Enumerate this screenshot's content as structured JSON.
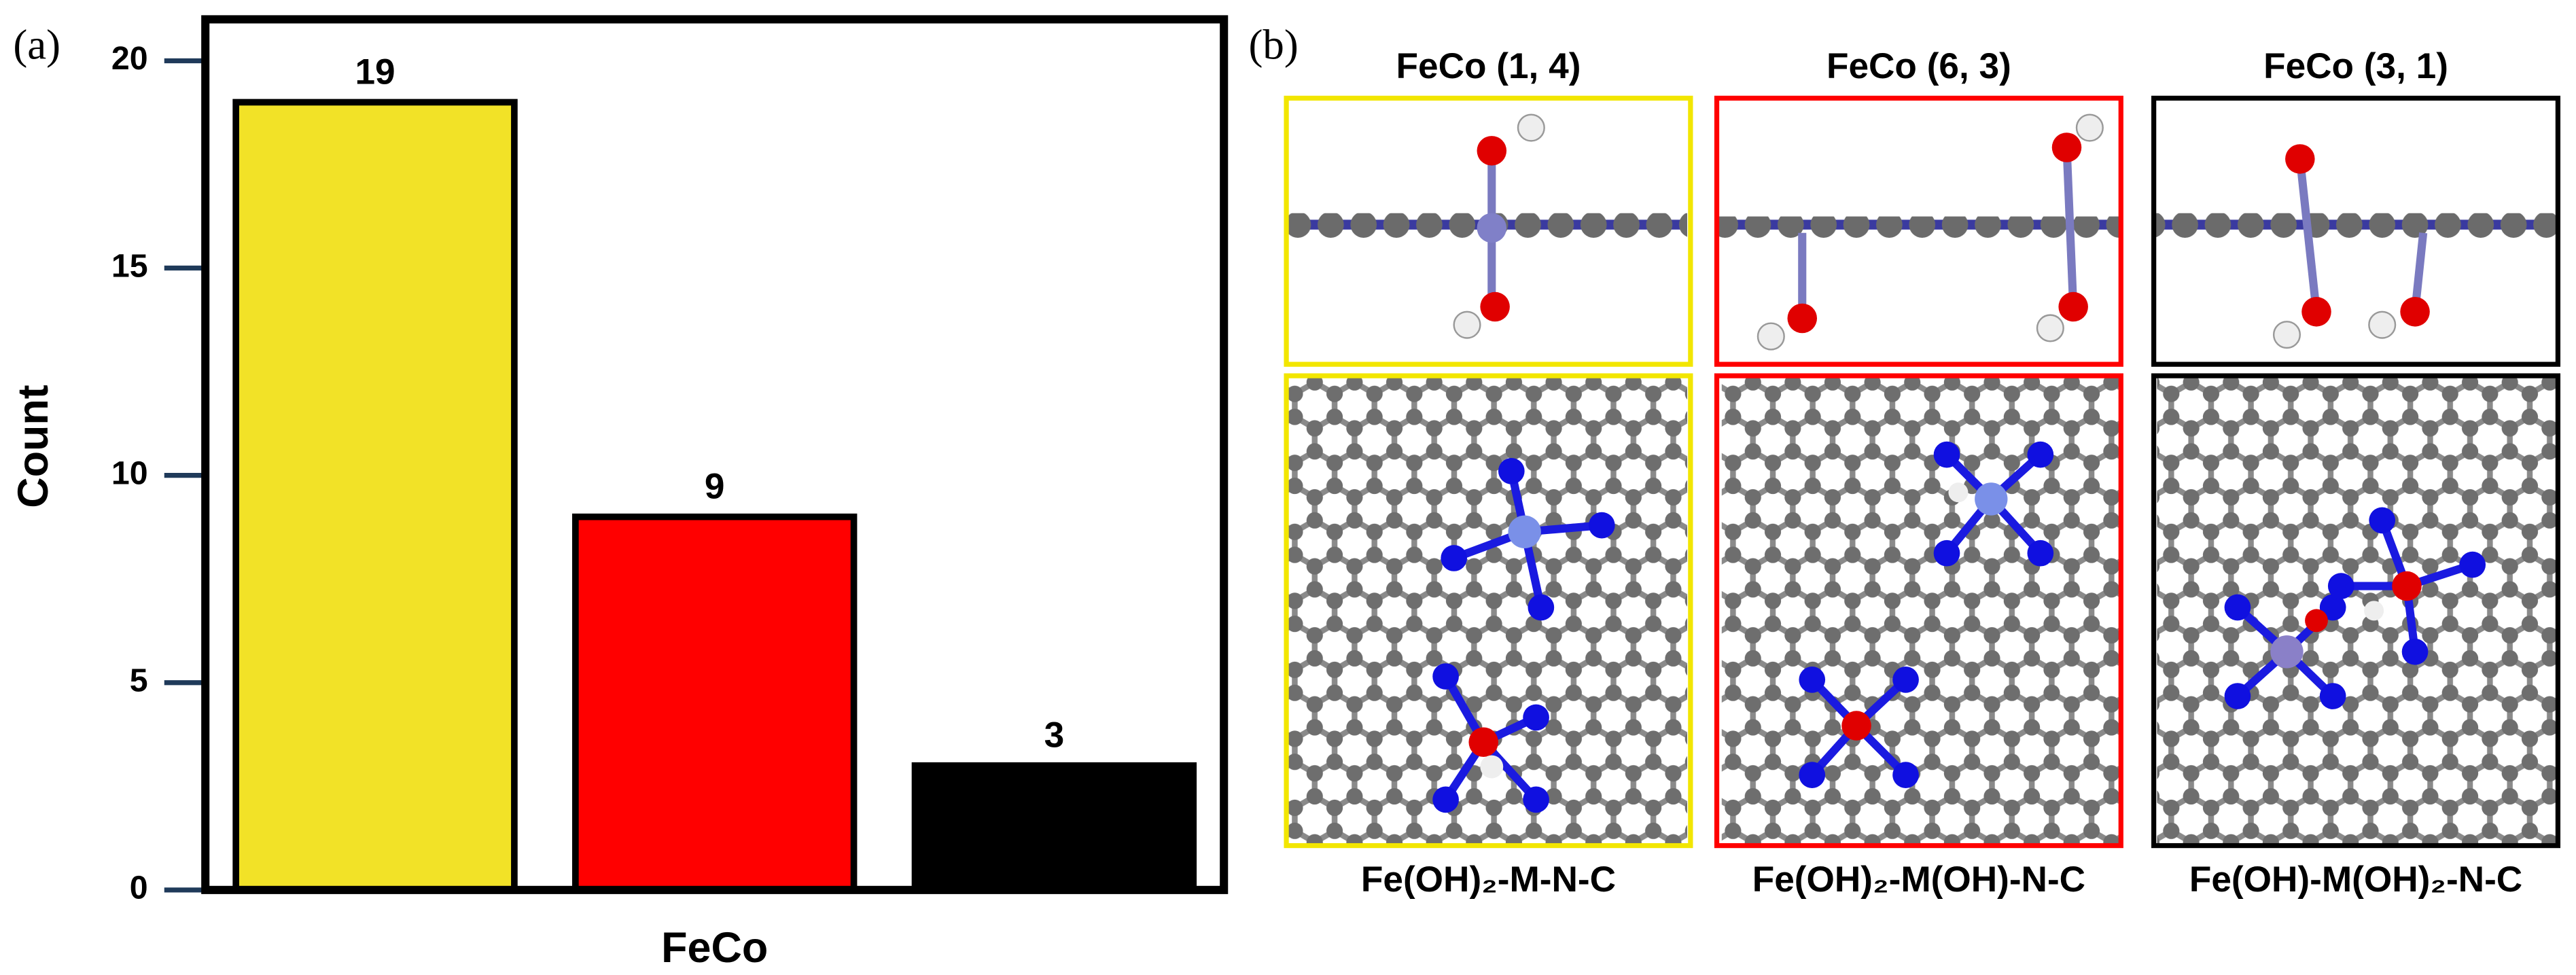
{
  "chart_data": {
    "type": "bar",
    "label": "(a)",
    "xlabel": "FeCo",
    "ylabel": "Count",
    "categories": [
      null,
      null,
      null
    ],
    "values": [
      19,
      9,
      3
    ],
    "colors": [
      "#f2e227",
      "#ff0000",
      "#000000"
    ],
    "ylim": [
      0,
      21
    ],
    "yticks": [
      0,
      5,
      10,
      15,
      20
    ]
  },
  "panel_b": {
    "label": "(b)",
    "columns": [
      {
        "title": "FeCo (1, 4)",
        "caption": "Fe(OH)₂-M-N-C",
        "color": "#f2e600"
      },
      {
        "title": "FeCo (6, 3)",
        "caption": "Fe(OH)₂-M(OH)-N-C",
        "color": "#ff0000"
      },
      {
        "title": "FeCo (3, 1)",
        "caption": "Fe(OH)-M(OH)₂-N-C",
        "color": "#000000"
      }
    ]
  }
}
